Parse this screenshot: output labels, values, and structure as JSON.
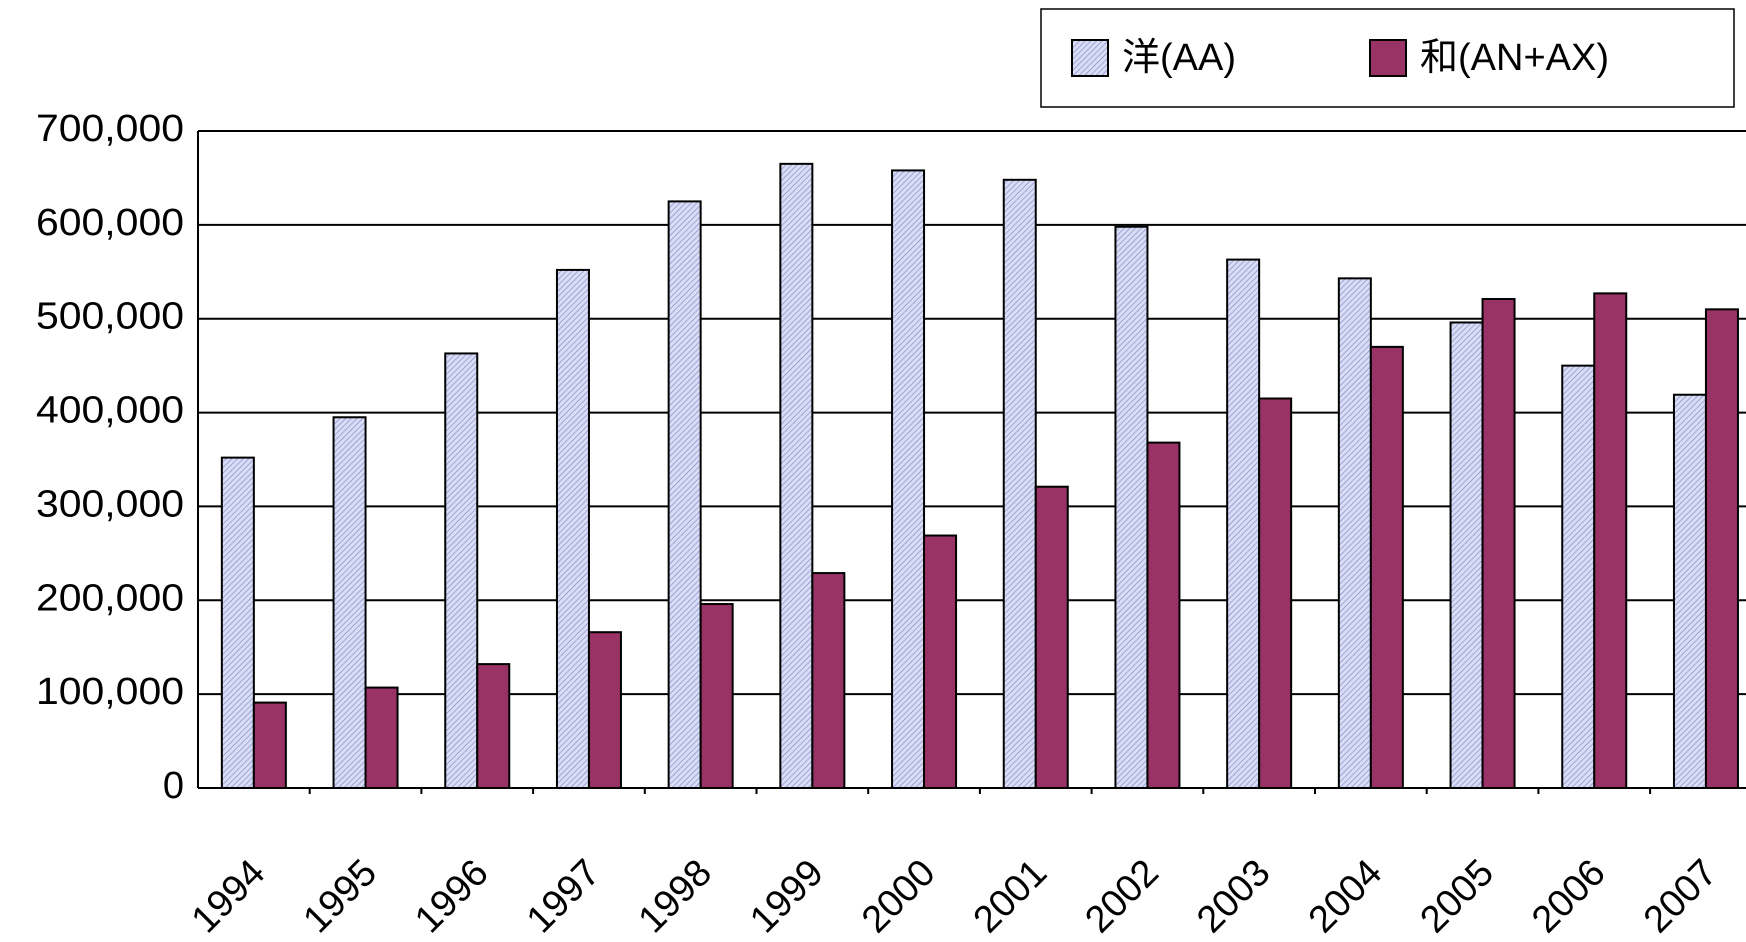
{
  "chart_data": {
    "type": "bar",
    "categories": [
      "1994",
      "1995",
      "1996",
      "1997",
      "1998",
      "1999",
      "2000",
      "2001",
      "2002",
      "2003",
      "2004",
      "2005",
      "2006",
      "2007"
    ],
    "series": [
      {
        "name": "洋(AA)",
        "color": "#d8dcf4",
        "values": [
          352000,
          395000,
          463000,
          552000,
          625000,
          665000,
          658000,
          648000,
          598000,
          563000,
          543000,
          496000,
          450000,
          419000
        ]
      },
      {
        "name": "和(AN+AX)",
        "color": "#993366",
        "values": [
          91000,
          107000,
          132000,
          166000,
          196000,
          229000,
          269000,
          321000,
          368000,
          415000,
          470000,
          521000,
          527000,
          510000
        ]
      }
    ],
    "ylim": [
      0,
      700000
    ],
    "yticks": [
      0,
      {
        "value": 100000,
        "label": "100,000"
      },
      {
        "value": 200000,
        "label": "200,000"
      },
      {
        "value": 300000,
        "label": "300,000"
      },
      {
        "value": 400000,
        "label": "400,000"
      },
      {
        "value": 500000,
        "label": "500,000"
      },
      {
        "value": 600000,
        "label": "600,000"
      },
      {
        "value": 700000,
        "label": "700,000"
      }
    ],
    "grid": true,
    "legend": "top-right"
  }
}
